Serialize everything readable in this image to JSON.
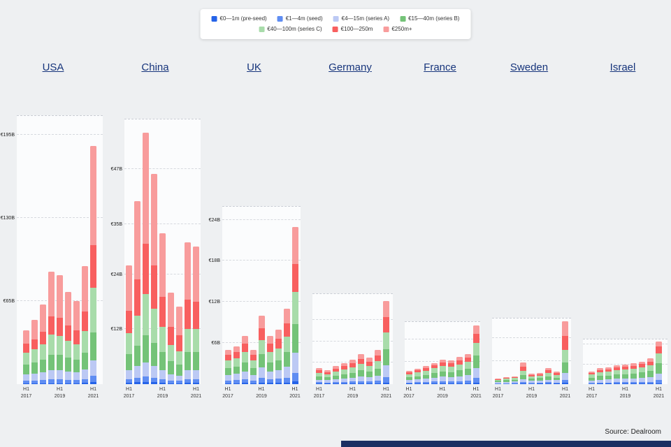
{
  "source": "Source: Dealroom",
  "legend": {
    "rows": [
      [
        0,
        1,
        2,
        3
      ],
      [
        4,
        5,
        6
      ]
    ]
  },
  "chart_data": {
    "type": "bar",
    "stacked": true,
    "unit": "EUR billions",
    "x_axis": "half-year periods from H1 2017 to H1 2021 (9 bars per country)",
    "x_ticks": [
      {
        "pos": 0,
        "label": "H1 2017"
      },
      {
        "pos": 4,
        "label": "H1 2019"
      },
      {
        "pos": 8,
        "label": "H1 2021"
      }
    ],
    "series_names": [
      "€0—1m (pre-seed)",
      "€1—4m (seed)",
      "€4—15m (series A)",
      "€15—40m (series B)",
      "€40—100m (series C)",
      "€100—250m",
      "€250m+"
    ],
    "series_colors": [
      "#2563e8",
      "#5f8df2",
      "#bcc9f4",
      "#74c378",
      "#a8dcaa",
      "#f85f5f",
      "#f89c9c"
    ],
    "panels": [
      {
        "country": "USA",
        "ymax": 210,
        "ticks": [
          65,
          130,
          195
        ],
        "tick_labels": [
          "€65B",
          "€130B",
          "€195B"
        ],
        "series": [
          [
            0.5,
            0.5,
            0.6,
            0.8,
            0.8,
            0.7,
            0.6,
            0.9,
            1.5
          ],
          [
            2,
            2.2,
            2.5,
            3,
            3,
            2.8,
            2.6,
            3.2,
            5
          ],
          [
            5,
            5.5,
            6,
            7,
            7,
            6.5,
            6,
            7.5,
            12
          ],
          [
            8,
            9,
            10,
            12,
            12,
            11,
            10,
            13,
            22
          ],
          [
            9,
            10,
            12,
            16,
            15,
            13,
            12,
            17,
            35
          ],
          [
            7,
            8,
            10,
            14,
            14,
            12,
            11,
            15,
            33
          ],
          [
            10.5,
            14.8,
            20.9,
            35.2,
            33.2,
            26,
            22.8,
            35.4,
            77.5
          ]
        ]
      },
      {
        "country": "China",
        "ymax": 58,
        "ticks": [
          12,
          24,
          35,
          47
        ],
        "tick_labels": [
          "€12B",
          "€24B",
          "€35B",
          "€47B"
        ],
        "series": [
          [
            0.3,
            0.4,
            0.5,
            0.4,
            0.3,
            0.2,
            0.2,
            0.3,
            0.3
          ],
          [
            0.8,
            1,
            1.2,
            1,
            0.8,
            0.6,
            0.5,
            0.8,
            0.8
          ],
          [
            2,
            2.5,
            3,
            2.6,
            2,
            1.4,
            1.2,
            2,
            2
          ],
          [
            3.5,
            4.5,
            6,
            5,
            4,
            2.8,
            2.3,
            3.9,
            3.9
          ],
          [
            4.5,
            6.5,
            9,
            7.5,
            5.5,
            3.5,
            3,
            5,
            5
          ],
          [
            5,
            8,
            11,
            9.5,
            6.5,
            4,
            3.5,
            6.5,
            6
          ],
          [
            9.9,
            17.1,
            24.3,
            20,
            13.9,
            7.5,
            6.3,
            12.5,
            12
          ]
        ]
      },
      {
        "country": "UK",
        "ymax": 26,
        "ticks": [
          6,
          12,
          18,
          24
        ],
        "tick_labels": [
          "€6B",
          "€12B",
          "€18B",
          "€24B"
        ],
        "series": [
          [
            0.15,
            0.15,
            0.2,
            0.15,
            0.25,
            0.2,
            0.2,
            0.25,
            0.4
          ],
          [
            0.4,
            0.45,
            0.5,
            0.4,
            0.7,
            0.5,
            0.6,
            0.7,
            1.2
          ],
          [
            0.8,
            0.9,
            1.1,
            0.8,
            1.5,
            1.1,
            1.2,
            1.6,
            3
          ],
          [
            1,
            1.1,
            1.4,
            1,
            1.9,
            1.4,
            1.5,
            2.1,
            4.2
          ],
          [
            1.1,
            1.2,
            1.5,
            1.1,
            2.1,
            1.5,
            1.7,
            2.3,
            4.7
          ],
          [
            0.8,
            0.9,
            1.2,
            0.8,
            1.7,
            1.2,
            1.4,
            1.9,
            4
          ],
          [
            0.75,
            0.8,
            1.1,
            0.75,
            1.85,
            1.1,
            1.4,
            2.15,
            5.5
          ]
        ]
      },
      {
        "country": "Germany",
        "ymax": 8.5,
        "ticks": [
          2,
          4,
          6
        ],
        "tick_labels": [],
        "series": [
          [
            0.05,
            0.05,
            0.05,
            0.06,
            0.07,
            0.08,
            0.07,
            0.09,
            0.15
          ],
          [
            0.12,
            0.1,
            0.13,
            0.15,
            0.17,
            0.2,
            0.18,
            0.23,
            0.5
          ],
          [
            0.25,
            0.22,
            0.28,
            0.33,
            0.38,
            0.45,
            0.4,
            0.5,
            1.1
          ],
          [
            0.3,
            0.26,
            0.34,
            0.4,
            0.46,
            0.55,
            0.5,
            0.64,
            1.5
          ],
          [
            0.33,
            0.29,
            0.38,
            0.44,
            0.5,
            0.62,
            0.55,
            0.7,
            1.6
          ],
          [
            0.25,
            0.21,
            0.28,
            0.33,
            0.38,
            0.46,
            0.41,
            0.53,
            1.45
          ],
          [
            0.2,
            0.17,
            0.24,
            0.29,
            0.34,
            0.44,
            0.39,
            0.51,
            1.5
          ]
        ]
      },
      {
        "country": "France",
        "ymax": 5.6,
        "ticks": [
          2,
          4
        ],
        "tick_labels": [],
        "series": [
          [
            0.04,
            0.05,
            0.06,
            0.07,
            0.08,
            0.07,
            0.08,
            0.09,
            0.15
          ],
          [
            0.1,
            0.12,
            0.13,
            0.16,
            0.18,
            0.17,
            0.2,
            0.22,
            0.4
          ],
          [
            0.22,
            0.25,
            0.29,
            0.34,
            0.4,
            0.38,
            0.43,
            0.49,
            0.9
          ],
          [
            0.26,
            0.3,
            0.34,
            0.41,
            0.47,
            0.45,
            0.52,
            0.58,
            1.1
          ],
          [
            0.27,
            0.32,
            0.36,
            0.43,
            0.5,
            0.48,
            0.54,
            0.61,
            1.15
          ],
          [
            0.17,
            0.2,
            0.23,
            0.27,
            0.31,
            0.3,
            0.34,
            0.39,
            0.8
          ],
          [
            0.14,
            0.16,
            0.19,
            0.22,
            0.26,
            0.25,
            0.29,
            0.32,
            0.7
          ]
        ]
      },
      {
        "country": "Sweden",
        "ymax": 5.8,
        "ticks": [
          2,
          4
        ],
        "tick_labels": [],
        "series": [
          [
            0.02,
            0.02,
            0.03,
            0.05,
            0.03,
            0.04,
            0.05,
            0.04,
            0.1
          ],
          [
            0.05,
            0.06,
            0.07,
            0.12,
            0.08,
            0.09,
            0.11,
            0.1,
            0.3
          ],
          [
            0.1,
            0.12,
            0.14,
            0.25,
            0.17,
            0.19,
            0.24,
            0.2,
            0.6
          ],
          [
            0.12,
            0.14,
            0.16,
            0.35,
            0.2,
            0.22,
            0.3,
            0.24,
            0.9
          ],
          [
            0.11,
            0.13,
            0.15,
            0.4,
            0.19,
            0.21,
            0.3,
            0.23,
            1.1
          ],
          [
            0.06,
            0.07,
            0.08,
            0.35,
            0.11,
            0.12,
            0.2,
            0.14,
            1.2
          ],
          [
            0.04,
            0.06,
            0.07,
            0.38,
            0.12,
            0.13,
            0.2,
            0.15,
            1.3
          ]
        ]
      },
      {
        "country": "Israel",
        "ymax": 4.6,
        "ticks": [
          2,
          4
        ],
        "tick_labels": [],
        "series": [
          [
            0.03,
            0.04,
            0.04,
            0.05,
            0.05,
            0.05,
            0.06,
            0.06,
            0.1
          ],
          [
            0.1,
            0.12,
            0.13,
            0.14,
            0.15,
            0.16,
            0.17,
            0.19,
            0.3
          ],
          [
            0.24,
            0.29,
            0.31,
            0.35,
            0.36,
            0.38,
            0.42,
            0.47,
            0.7
          ],
          [
            0.3,
            0.37,
            0.39,
            0.44,
            0.46,
            0.48,
            0.53,
            0.6,
            1.0
          ],
          [
            0.3,
            0.37,
            0.4,
            0.44,
            0.47,
            0.49,
            0.54,
            0.61,
            1.0
          ],
          [
            0.18,
            0.22,
            0.23,
            0.26,
            0.28,
            0.29,
            0.32,
            0.36,
            0.7
          ],
          [
            0.15,
            0.19,
            0.2,
            0.22,
            0.23,
            0.25,
            0.26,
            0.31,
            0.5
          ]
        ]
      }
    ]
  }
}
